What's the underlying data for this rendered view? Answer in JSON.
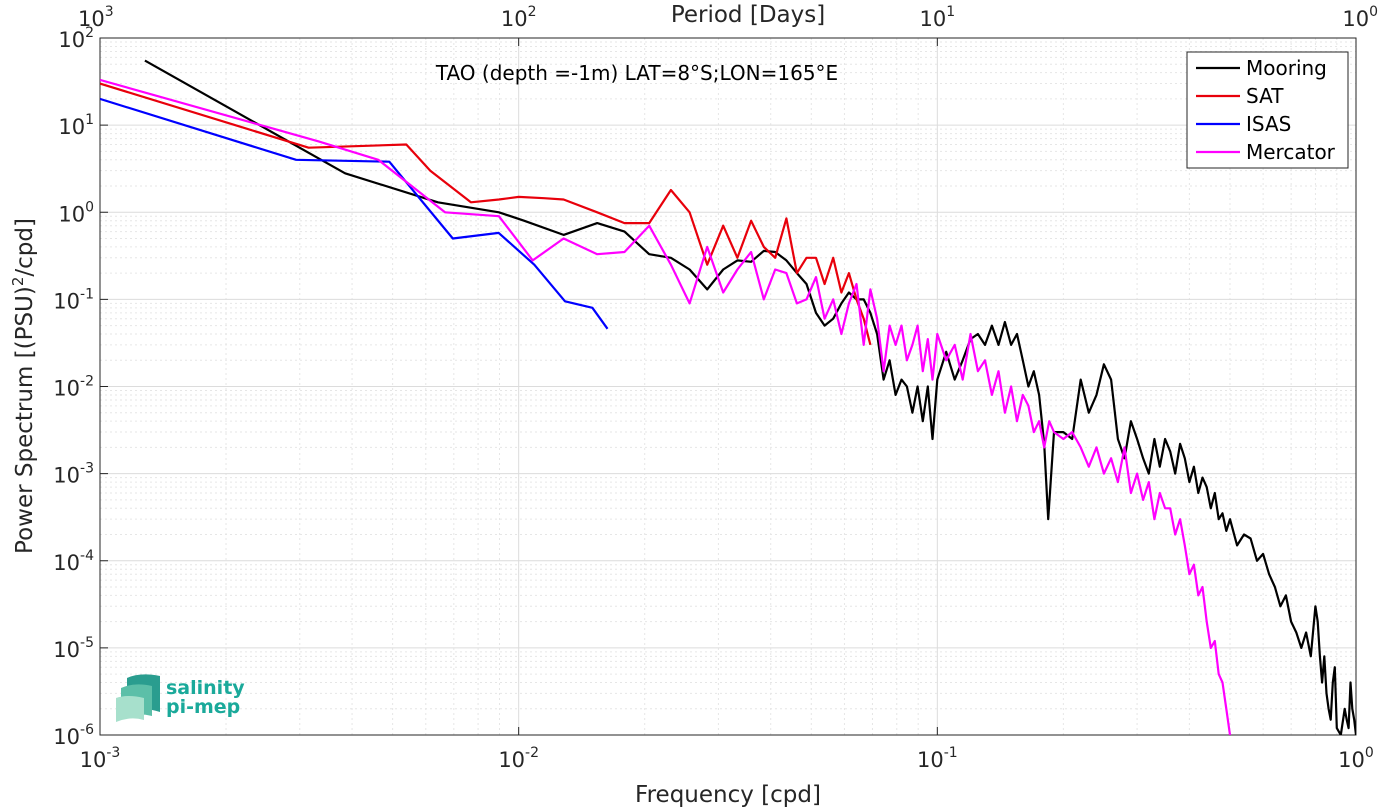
{
  "chart_data": {
    "type": "line",
    "title": "TAO (depth =-1m) LAT=8°S;LON=165°E",
    "xlabel": "Frequency [cpd]",
    "ylabel": "Power Spectrum [(PSU)²/cpd]",
    "ylabel_parts": {
      "before": "Power Spectrum [(PSU)",
      "sup": "2",
      "after": "/cpd]"
    },
    "top_xlabel": "Period [Days]",
    "xscale": "log",
    "yscale": "log",
    "xlim": [
      0.001,
      1
    ],
    "ylim": [
      1e-06,
      100
    ],
    "grid": true,
    "minor_grid": true,
    "legend_position": "top-right",
    "x_ticks": [
      {
        "value": 0.001,
        "base": "10",
        "exp": "-3"
      },
      {
        "value": 0.01,
        "base": "10",
        "exp": "-2"
      },
      {
        "value": 0.1,
        "base": "10",
        "exp": "-1"
      },
      {
        "value": 1,
        "base": "10",
        "exp": "0"
      }
    ],
    "y_ticks": [
      {
        "value": 1e-06,
        "base": "10",
        "exp": "-6"
      },
      {
        "value": 1e-05,
        "base": "10",
        "exp": "-5"
      },
      {
        "value": 0.0001,
        "base": "10",
        "exp": "-4"
      },
      {
        "value": 0.001,
        "base": "10",
        "exp": "-3"
      },
      {
        "value": 0.01,
        "base": "10",
        "exp": "-2"
      },
      {
        "value": 0.1,
        "base": "10",
        "exp": "-1"
      },
      {
        "value": 1,
        "base": "10",
        "exp": "0"
      },
      {
        "value": 10,
        "base": "10",
        "exp": "1"
      },
      {
        "value": 100,
        "base": "10",
        "exp": "2"
      }
    ],
    "top_ticks": [
      {
        "freq": 0.001,
        "base": "10",
        "exp": "3"
      },
      {
        "freq": 0.01,
        "base": "10",
        "exp": "2"
      },
      {
        "freq": 0.1,
        "base": "10",
        "exp": "1"
      },
      {
        "freq": 1,
        "base": "10",
        "exp": "0"
      }
    ],
    "series": [
      {
        "name": "Mooring",
        "color": "#000000",
        "x": [
          0.00128,
          0.00385,
          0.00641,
          0.00897,
          0.0103,
          0.0128,
          0.0154,
          0.0179,
          0.0205,
          0.0231,
          0.0256,
          0.0282,
          0.0308,
          0.0333,
          0.0359,
          0.0385,
          0.041,
          0.0436,
          0.0462,
          0.0487,
          0.0513,
          0.0538,
          0.0564,
          0.059,
          0.0615,
          0.0641,
          0.0667,
          0.0692,
          0.0718,
          0.0744,
          0.0769,
          0.0795,
          0.0821,
          0.0846,
          0.0872,
          0.0897,
          0.0923,
          0.0949,
          0.0974,
          0.1,
          0.105,
          0.11,
          0.115,
          0.12,
          0.125,
          0.13,
          0.135,
          0.14,
          0.145,
          0.15,
          0.155,
          0.16,
          0.165,
          0.17,
          0.175,
          0.18,
          0.184,
          0.19,
          0.2,
          0.21,
          0.22,
          0.23,
          0.24,
          0.25,
          0.26,
          0.27,
          0.28,
          0.29,
          0.3,
          0.31,
          0.32,
          0.33,
          0.34,
          0.35,
          0.36,
          0.37,
          0.38,
          0.39,
          0.4,
          0.41,
          0.42,
          0.43,
          0.44,
          0.45,
          0.46,
          0.47,
          0.48,
          0.49,
          0.5,
          0.52,
          0.54,
          0.56,
          0.58,
          0.6,
          0.62,
          0.64,
          0.66,
          0.68,
          0.7,
          0.72,
          0.74,
          0.76,
          0.78,
          0.8,
          0.81,
          0.82,
          0.83,
          0.84,
          0.85,
          0.86,
          0.87,
          0.88,
          0.89,
          0.9,
          0.92,
          0.94,
          0.95,
          0.96,
          0.97,
          0.98,
          0.99,
          1.0
        ],
        "y": [
          55,
          2.8,
          1.3,
          1.0,
          0.8,
          0.55,
          0.75,
          0.6,
          0.33,
          0.3,
          0.22,
          0.13,
          0.22,
          0.28,
          0.27,
          0.36,
          0.35,
          0.28,
          0.2,
          0.15,
          0.07,
          0.05,
          0.06,
          0.09,
          0.12,
          0.1,
          0.1,
          0.07,
          0.04,
          0.012,
          0.02,
          0.008,
          0.012,
          0.01,
          0.005,
          0.01,
          0.004,
          0.01,
          0.0025,
          0.012,
          0.025,
          0.012,
          0.02,
          0.035,
          0.04,
          0.03,
          0.05,
          0.03,
          0.055,
          0.03,
          0.04,
          0.02,
          0.01,
          0.015,
          0.008,
          0.0022,
          0.0003,
          0.003,
          0.003,
          0.0025,
          0.012,
          0.005,
          0.008,
          0.018,
          0.012,
          0.0025,
          0.0015,
          0.004,
          0.0025,
          0.0015,
          0.001,
          0.0025,
          0.0012,
          0.0025,
          0.0018,
          0.001,
          0.0022,
          0.0015,
          0.0008,
          0.0012,
          0.0006,
          0.0009,
          0.0007,
          0.0004,
          0.0006,
          0.0003,
          0.00035,
          0.00022,
          0.0003,
          0.00015,
          0.0002,
          0.00018,
          0.0001,
          0.00012,
          7e-05,
          5e-05,
          3e-05,
          4e-05,
          2e-05,
          1.5e-05,
          1e-05,
          1.5e-05,
          8e-06,
          3e-05,
          2e-05,
          8e-06,
          4e-06,
          8e-06,
          3e-06,
          2e-06,
          1.5e-06,
          4e-06,
          6e-06,
          1.2e-06,
          1e-06,
          2e-06,
          1.5e-06,
          1.2e-06,
          4e-06,
          2e-06,
          1.5e-06,
          1e-06
        ]
      },
      {
        "name": "SAT",
        "color": "#e8000b",
        "x": [
          0.001,
          0.00315,
          0.00539,
          0.00615,
          0.00769,
          0.00897,
          0.01,
          0.0115,
          0.0128,
          0.0154,
          0.0179,
          0.0205,
          0.0231,
          0.0256,
          0.0282,
          0.0308,
          0.0333,
          0.0359,
          0.0385,
          0.041,
          0.0436,
          0.0462,
          0.0487,
          0.0513,
          0.0538,
          0.0564,
          0.059,
          0.0615,
          0.0641,
          0.0667,
          0.0692
        ],
        "y": [
          30,
          5.5,
          6.0,
          3.0,
          1.3,
          1.4,
          1.5,
          1.45,
          1.4,
          1.0,
          0.75,
          0.75,
          1.8,
          1.0,
          0.25,
          0.7,
          0.3,
          0.8,
          0.4,
          0.3,
          0.85,
          0.2,
          0.3,
          0.3,
          0.15,
          0.3,
          0.12,
          0.2,
          0.1,
          0.06,
          0.03
        ]
      },
      {
        "name": "ISAS",
        "color": "#0000ff",
        "x": [
          0.001,
          0.00294,
          0.00491,
          0.00696,
          0.00896,
          0.0109,
          0.0129,
          0.015,
          0.0163
        ],
        "y": [
          20,
          4.0,
          3.8,
          0.5,
          0.58,
          0.25,
          0.095,
          0.08,
          0.046
        ]
      },
      {
        "name": "Mercator",
        "color": "#ff00ff",
        "x": [
          0.001,
          0.00333,
          0.00462,
          0.00667,
          0.00897,
          0.0108,
          0.0128,
          0.0154,
          0.0179,
          0.0205,
          0.0231,
          0.0256,
          0.0282,
          0.0308,
          0.0333,
          0.0359,
          0.0385,
          0.041,
          0.0436,
          0.0462,
          0.0487,
          0.0513,
          0.0538,
          0.0564,
          0.059,
          0.0615,
          0.0641,
          0.0667,
          0.0692,
          0.0718,
          0.0744,
          0.0769,
          0.0795,
          0.0821,
          0.0846,
          0.0872,
          0.0897,
          0.0923,
          0.0949,
          0.0974,
          0.1,
          0.105,
          0.11,
          0.115,
          0.12,
          0.125,
          0.13,
          0.135,
          0.14,
          0.145,
          0.15,
          0.155,
          0.16,
          0.165,
          0.17,
          0.175,
          0.18,
          0.185,
          0.19,
          0.2,
          0.21,
          0.22,
          0.23,
          0.24,
          0.25,
          0.26,
          0.27,
          0.28,
          0.29,
          0.3,
          0.31,
          0.32,
          0.33,
          0.34,
          0.35,
          0.36,
          0.37,
          0.38,
          0.39,
          0.4,
          0.41,
          0.42,
          0.43,
          0.44,
          0.45,
          0.46,
          0.47,
          0.48,
          0.49,
          0.5
        ],
        "y": [
          33,
          6.5,
          4.0,
          1.0,
          0.9,
          0.28,
          0.5,
          0.33,
          0.35,
          0.7,
          0.25,
          0.09,
          0.4,
          0.12,
          0.22,
          0.35,
          0.1,
          0.22,
          0.2,
          0.09,
          0.1,
          0.18,
          0.06,
          0.1,
          0.04,
          0.09,
          0.15,
          0.03,
          0.13,
          0.06,
          0.015,
          0.05,
          0.03,
          0.05,
          0.02,
          0.03,
          0.05,
          0.015,
          0.035,
          0.012,
          0.04,
          0.02,
          0.03,
          0.012,
          0.04,
          0.015,
          0.02,
          0.008,
          0.015,
          0.005,
          0.01,
          0.004,
          0.008,
          0.006,
          0.003,
          0.004,
          0.002,
          0.004,
          0.003,
          0.0025,
          0.003,
          0.002,
          0.0012,
          0.002,
          0.001,
          0.0015,
          0.0008,
          0.002,
          0.0006,
          0.001,
          0.0005,
          0.0008,
          0.0003,
          0.0006,
          0.0004,
          0.0004,
          0.0002,
          0.0003,
          0.00015,
          7e-05,
          9e-05,
          4e-05,
          5e-05,
          2e-05,
          1e-05,
          1.2e-05,
          5e-06,
          4e-06,
          2e-06,
          1e-06
        ]
      }
    ],
    "legend": [
      "Mooring",
      "SAT",
      "ISAS",
      "Mercator"
    ]
  },
  "logo": {
    "line1": "salinity",
    "line2": "pi-mep"
  }
}
